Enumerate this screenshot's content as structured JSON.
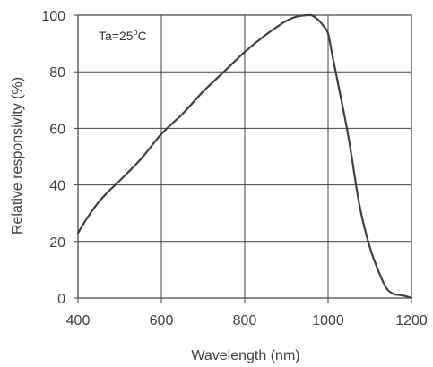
{
  "chart_data": {
    "type": "line",
    "title": "",
    "xlabel": "Wavelength  (nm)",
    "ylabel": "Relative responsivity  (%)",
    "xlim": [
      400,
      1200
    ],
    "ylim": [
      0,
      100
    ],
    "x_ticks": [
      "400",
      "600",
      "800",
      "1000",
      "1200"
    ],
    "y_ticks": [
      "0",
      "20",
      "40",
      "60",
      "80",
      "100"
    ],
    "grid": true,
    "legend": "none",
    "annotation": {
      "main": "Ta=25",
      "sup": "o",
      "tail": "C"
    },
    "line_color": "#404040",
    "series": [
      {
        "x": [
          400,
          425,
          450,
          475,
          500,
          550,
          600,
          650,
          700,
          750,
          800,
          850,
          900,
          925,
          950,
          960,
          975,
          990,
          1000,
          1010,
          1025,
          1050,
          1075,
          1100,
          1125,
          1140,
          1150,
          1160,
          1175,
          1190,
          1200
        ],
        "y": [
          23,
          29,
          34,
          38,
          41.5,
          49,
          58,
          65,
          73,
          80,
          87,
          93,
          98,
          99.5,
          100,
          100,
          98.5,
          96,
          93.5,
          86,
          75,
          56,
          33,
          18,
          8,
          3.5,
          2,
          1.3,
          1,
          0.5,
          0
        ]
      }
    ]
  }
}
